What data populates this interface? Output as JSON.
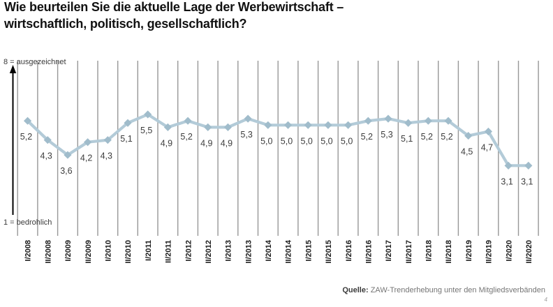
{
  "title": {
    "line1": "Wie beurteilen Sie die aktuelle Lage der Werbewirtschaft –",
    "line2": "wirtschaftlich, politisch, gesellschaftlich?"
  },
  "axis": {
    "top_label": "8 = ausgezeichnet",
    "bottom_label": "1 = bedrohlich"
  },
  "source": {
    "prefix": "Quelle:",
    "text": " ZAW-Trenderhebung unter den Mitgliedsverbänden"
  },
  "page_number": "4",
  "colors": {
    "line": "#b3cbd8",
    "marker": "#a0bccb",
    "gridline": "#979797",
    "arrow": "#000000",
    "value_label": "#3d3d3d",
    "category_label": "#1a1a1a"
  },
  "chart_data": {
    "type": "line",
    "title": "Wie beurteilen Sie die aktuelle Lage der Werbewirtschaft – wirtschaftlich, politisch, gesellschaftlich?",
    "categories": [
      "I/2008",
      "II/2008",
      "I/2009",
      "II/2009",
      "I/2010",
      "II/2010",
      "I/2011",
      "II/2011",
      "I/2012",
      "II/2012",
      "I/2013",
      "II/2013",
      "I/2014",
      "II/2014",
      "I/2015",
      "II/2015",
      "I/2016",
      "II/2016",
      "I/2017",
      "II/2017",
      "I/2018",
      "II/2018",
      "I/2019",
      "II/2019",
      "I/2020",
      "II/2020"
    ],
    "values": [
      5.2,
      4.3,
      3.6,
      4.2,
      4.3,
      5.1,
      5.5,
      4.9,
      5.2,
      4.9,
      4.9,
      5.3,
      5.0,
      5.0,
      5.0,
      5.0,
      5.0,
      5.2,
      5.3,
      5.1,
      5.2,
      5.2,
      4.5,
      4.7,
      3.1,
      3.1
    ],
    "value_labels": [
      "5,2",
      "4,3",
      "3,6",
      "4,2",
      "4,3",
      "5,1",
      "5,5",
      "4,9",
      "5,2",
      "4,9",
      "4,9",
      "5,3",
      "5,0",
      "5,0",
      "5,0",
      "5,0",
      "5,0",
      "5,2",
      "5,3",
      "5,1",
      "5,2",
      "5,2",
      "4,5",
      "4,7",
      "3,1",
      "3,1"
    ],
    "ylim": [
      1,
      8
    ],
    "ymin_label": "1 = bedrohlich",
    "ymax_label": "8 = ausgezeichnet",
    "grid": "vertical",
    "legend": "none",
    "marker": "diamond",
    "source": "Quelle: ZAW-Trenderhebung unter den Mitgliedsverbänden"
  }
}
